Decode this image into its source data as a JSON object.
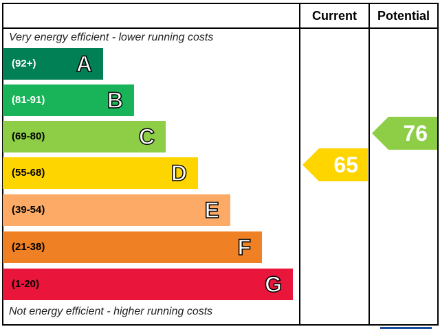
{
  "chart_data": {
    "type": "bar",
    "headers": {
      "current": "Current",
      "potential": "Potential"
    },
    "top_caption": "Very energy efficient - lower running costs",
    "bottom_caption": "Not energy efficient - higher running costs",
    "bands": [
      {
        "letter": "A",
        "range": "(92+)",
        "color": "#008054",
        "text_color": "#ffffff"
      },
      {
        "letter": "B",
        "range": "(81-91)",
        "color": "#19b459",
        "text_color": "#ffffff"
      },
      {
        "letter": "C",
        "range": "(69-80)",
        "color": "#8dce46",
        "text_color": "#000000"
      },
      {
        "letter": "D",
        "range": "(55-68)",
        "color": "#ffd500",
        "text_color": "#000000"
      },
      {
        "letter": "E",
        "range": "(39-54)",
        "color": "#fcaa65",
        "text_color": "#000000"
      },
      {
        "letter": "F",
        "range": "(21-38)",
        "color": "#ef8023",
        "text_color": "#000000"
      },
      {
        "letter": "G",
        "range": "(1-20)",
        "color": "#e9153b",
        "text_color": "#000000"
      }
    ],
    "current": {
      "value": 65,
      "band": "D",
      "color": "#ffd500"
    },
    "potential": {
      "value": 76,
      "band": "C",
      "color": "#8dce46"
    }
  }
}
